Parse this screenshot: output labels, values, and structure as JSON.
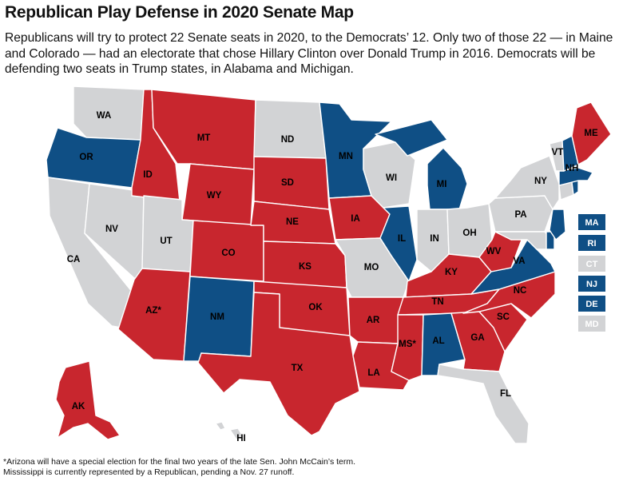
{
  "title": "Republican Play Defense in 2020 Senate Map",
  "subtitle": "Republicans will try to protect 22 Senate seats in 2020, to the Democrats’ 12. Only two of those 22 — in Maine and Colorado — had an electorate that chose Hillary Clinton over Donald Trump in 2016. Democrats will be defending two seats in Trump states, in Alabama and Michigan.",
  "colors": {
    "republican": "#c8262e",
    "democrat": "#0f4f85",
    "none": "#d2d3d5"
  },
  "states": {
    "WA": {
      "label": "WA",
      "party": "none"
    },
    "OR": {
      "label": "OR",
      "party": "democrat"
    },
    "CA": {
      "label": "CA",
      "party": "none"
    },
    "NV": {
      "label": "NV",
      "party": "none"
    },
    "ID": {
      "label": "ID",
      "party": "republican"
    },
    "MT": {
      "label": "MT",
      "party": "republican"
    },
    "WY": {
      "label": "WY",
      "party": "republican"
    },
    "UT": {
      "label": "UT",
      "party": "none"
    },
    "AZ": {
      "label": "AZ*",
      "party": "republican"
    },
    "CO": {
      "label": "CO",
      "party": "republican"
    },
    "NM": {
      "label": "NM",
      "party": "democrat"
    },
    "ND": {
      "label": "ND",
      "party": "none"
    },
    "SD": {
      "label": "SD",
      "party": "republican"
    },
    "NE": {
      "label": "NE",
      "party": "republican"
    },
    "KS": {
      "label": "KS",
      "party": "republican"
    },
    "OK": {
      "label": "OK",
      "party": "republican"
    },
    "TX": {
      "label": "TX",
      "party": "republican"
    },
    "MN": {
      "label": "MN",
      "party": "democrat"
    },
    "IA": {
      "label": "IA",
      "party": "republican"
    },
    "MO": {
      "label": "MO",
      "party": "none"
    },
    "AR": {
      "label": "AR",
      "party": "republican"
    },
    "LA": {
      "label": "LA",
      "party": "republican"
    },
    "WI": {
      "label": "WI",
      "party": "none"
    },
    "IL": {
      "label": "IL",
      "party": "democrat"
    },
    "MI": {
      "label": "MI",
      "party": "democrat"
    },
    "IN": {
      "label": "IN",
      "party": "none"
    },
    "OH": {
      "label": "OH",
      "party": "none"
    },
    "KY": {
      "label": "KY",
      "party": "republican"
    },
    "TN": {
      "label": "TN",
      "party": "republican"
    },
    "MS": {
      "label": "MS*",
      "party": "republican"
    },
    "AL": {
      "label": "AL",
      "party": "democrat"
    },
    "GA": {
      "label": "GA",
      "party": "republican"
    },
    "FL": {
      "label": "FL",
      "party": "none"
    },
    "SC": {
      "label": "SC",
      "party": "republican"
    },
    "NC": {
      "label": "NC",
      "party": "republican"
    },
    "VA": {
      "label": "VA",
      "party": "democrat"
    },
    "WV": {
      "label": "WV",
      "party": "republican"
    },
    "PA": {
      "label": "PA",
      "party": "none"
    },
    "NY": {
      "label": "NY",
      "party": "none"
    },
    "VT": {
      "label": "VT",
      "party": "none"
    },
    "NH": {
      "label": "NH",
      "party": "democrat"
    },
    "ME": {
      "label": "ME",
      "party": "republican"
    },
    "MA": {
      "label": "MA",
      "party": "democrat"
    },
    "RI": {
      "label": "RI",
      "party": "democrat"
    },
    "CT": {
      "label": "CT",
      "party": "none"
    },
    "NJ": {
      "label": "NJ",
      "party": "democrat"
    },
    "DE": {
      "label": "DE",
      "party": "democrat"
    },
    "MD": {
      "label": "MD",
      "party": "none"
    },
    "AK": {
      "label": "AK",
      "party": "republican"
    },
    "HI": {
      "label": "HI",
      "party": "none"
    }
  },
  "small_states": [
    "MA",
    "RI",
    "CT",
    "NJ",
    "DE",
    "MD"
  ],
  "footnote": {
    "line1": "*Arizona will have a special election for the final two years of the late Sen. John McCain’s term.",
    "line2": "Mississippi is currently represented by a Republican, pending a Nov. 27 runoff."
  }
}
